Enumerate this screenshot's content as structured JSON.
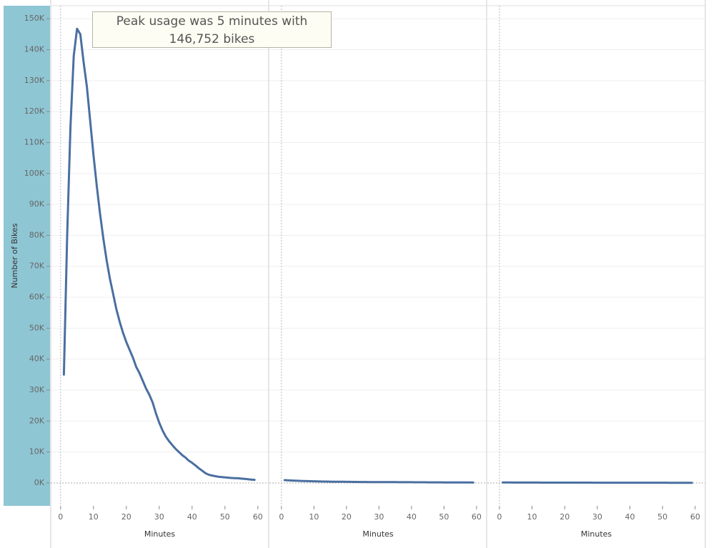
{
  "chart_data": [
    {
      "type": "line",
      "ylabel": "Number of Bikes",
      "xlabel": "Minutes",
      "color": "#4a6fa0",
      "grid": true,
      "annotation": "Peak usage was 5 minutes with 146,752 bikes",
      "ylim": [
        -7400,
        154200
      ],
      "xlim": [
        -3,
        63.3
      ],
      "yticks": [
        {
          "value": 0,
          "label": "0K"
        },
        {
          "value": 10000,
          "label": "10K"
        },
        {
          "value": 20000,
          "label": "20K"
        },
        {
          "value": 30000,
          "label": "30K"
        },
        {
          "value": 40000,
          "label": "40K"
        },
        {
          "value": 50000,
          "label": "50K"
        },
        {
          "value": 60000,
          "label": "60K"
        },
        {
          "value": 70000,
          "label": "70K"
        },
        {
          "value": 80000,
          "label": "80K"
        },
        {
          "value": 90000,
          "label": "90K"
        },
        {
          "value": 100000,
          "label": "100K"
        },
        {
          "value": 110000,
          "label": "110K"
        },
        {
          "value": 120000,
          "label": "120K"
        },
        {
          "value": 130000,
          "label": "130K"
        },
        {
          "value": 140000,
          "label": "140K"
        },
        {
          "value": 150000,
          "label": "150K"
        }
      ],
      "xticks": [
        0,
        10,
        20,
        30,
        40,
        50,
        60
      ],
      "x": [
        1,
        2,
        3,
        4,
        5,
        6,
        7,
        8,
        9,
        10,
        11,
        12,
        13,
        14,
        15,
        16,
        17,
        18,
        19,
        20,
        21,
        22,
        23,
        24,
        25,
        26,
        27,
        28,
        29,
        30,
        31,
        32,
        33,
        34,
        35,
        36,
        37,
        38,
        39,
        40,
        41,
        42,
        43,
        44,
        45,
        46,
        47,
        48,
        49,
        50,
        51,
        52,
        53,
        54,
        55,
        56,
        57,
        58,
        59
      ],
      "values": [
        35000,
        80000,
        115000,
        138000,
        146752,
        145000,
        136000,
        128000,
        117000,
        106000,
        96000,
        87000,
        79000,
        72000,
        66000,
        61000,
        56000,
        52000,
        48500,
        45500,
        43000,
        40500,
        37500,
        35500,
        33000,
        30500,
        28500,
        26000,
        22500,
        19500,
        17000,
        15000,
        13500,
        12200,
        11000,
        10000,
        9000,
        8200,
        7200,
        6500,
        5700,
        4800,
        4000,
        3200,
        2700,
        2400,
        2200,
        2000,
        1900,
        1800,
        1700,
        1600,
        1550,
        1500,
        1400,
        1300,
        1200,
        1100,
        1000
      ]
    },
    {
      "type": "line",
      "xlabel": "Minutes",
      "color": "#4a6fa0",
      "ylim": [
        -7400,
        154200
      ],
      "xlim": [
        -3.7,
        63.1
      ],
      "xticks": [
        0,
        10,
        20,
        30,
        40,
        50,
        60
      ],
      "x": [
        1,
        2,
        3,
        4,
        5,
        6,
        7,
        8,
        9,
        10,
        11,
        12,
        13,
        14,
        15,
        16,
        17,
        18,
        19,
        20,
        21,
        22,
        23,
        24,
        25,
        26,
        27,
        28,
        29,
        30,
        31,
        32,
        33,
        34,
        35,
        36,
        37,
        38,
        39,
        40,
        41,
        42,
        43,
        44,
        45,
        46,
        47,
        48,
        49,
        50,
        51,
        52,
        53,
        54,
        55,
        56,
        57,
        58,
        59
      ],
      "values": [
        900,
        850,
        800,
        750,
        700,
        660,
        620,
        590,
        560,
        530,
        500,
        480,
        460,
        440,
        420,
        400,
        390,
        380,
        370,
        360,
        350,
        340,
        330,
        320,
        310,
        300,
        295,
        290,
        285,
        280,
        275,
        270,
        265,
        260,
        255,
        250,
        245,
        240,
        235,
        230,
        225,
        220,
        215,
        210,
        205,
        200,
        195,
        190,
        185,
        180,
        175,
        170,
        165,
        160,
        155,
        150,
        145,
        140,
        135
      ]
    },
    {
      "type": "line",
      "xlabel": "Minutes",
      "color": "#4a6fa0",
      "ylim": [
        -7400,
        154200
      ],
      "xlim": [
        -3.7,
        63.1
      ],
      "xticks": [
        0,
        10,
        20,
        30,
        40,
        50,
        60
      ],
      "x": [
        1,
        2,
        3,
        4,
        5,
        6,
        7,
        8,
        9,
        10,
        11,
        12,
        13,
        14,
        15,
        16,
        17,
        18,
        19,
        20,
        21,
        22,
        23,
        24,
        25,
        26,
        27,
        28,
        29,
        30,
        31,
        32,
        33,
        34,
        35,
        36,
        37,
        38,
        39,
        40,
        41,
        42,
        43,
        44,
        45,
        46,
        47,
        48,
        49,
        50,
        51,
        52,
        53,
        54,
        55,
        56,
        57,
        58,
        59
      ],
      "values": [
        150,
        145,
        140,
        135,
        130,
        128,
        126,
        124,
        122,
        120,
        118,
        116,
        114,
        112,
        110,
        108,
        106,
        104,
        102,
        100,
        99,
        98,
        97,
        96,
        95,
        94,
        93,
        92,
        91,
        90,
        89,
        88,
        87,
        86,
        85,
        84,
        83,
        82,
        81,
        80,
        79,
        78,
        77,
        76,
        75,
        74,
        73,
        72,
        71,
        70,
        69,
        68,
        67,
        66,
        65,
        64,
        63,
        62,
        61
      ]
    }
  ]
}
